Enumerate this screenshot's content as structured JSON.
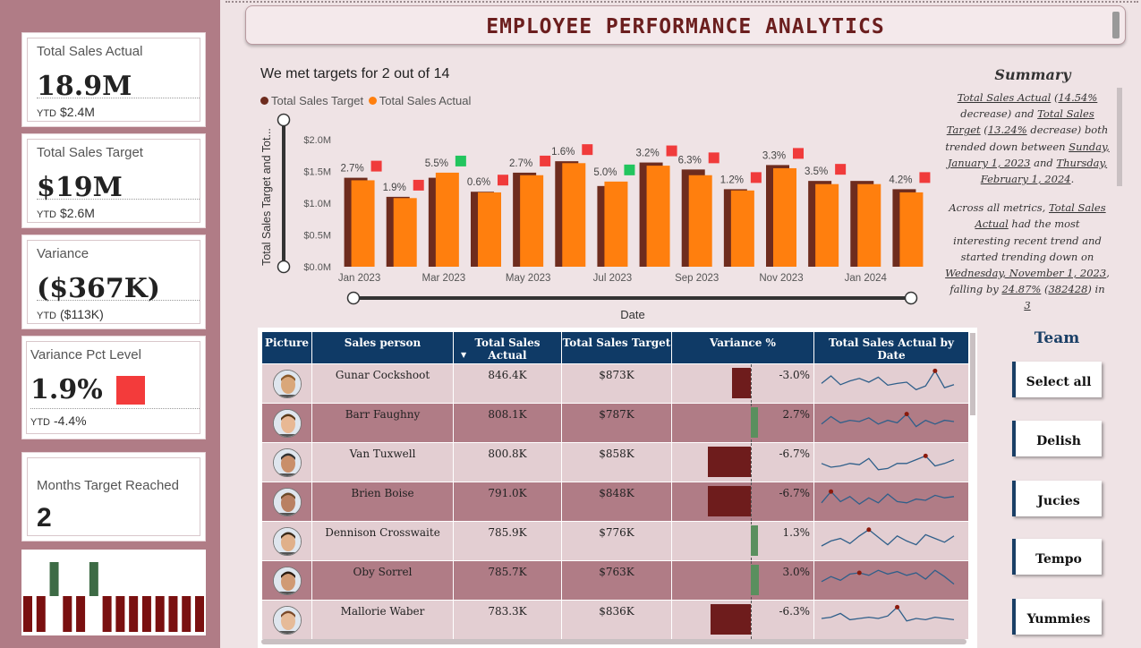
{
  "title": "EMPLOYEE PERFORMANCE ANALYTICS",
  "kpis": {
    "total_sales_actual": {
      "label": "Total Sales Actual",
      "value": "18.9M",
      "ytd_label": "YTD",
      "ytd_value": "$2.4M"
    },
    "total_sales_target": {
      "label": "Total Sales Target",
      "value": "$19M",
      "ytd_label": "YTD",
      "ytd_value": "$2.6M"
    },
    "variance": {
      "label": "Variance",
      "value": "($367K)",
      "ytd_label": "YTD",
      "ytd_value": "($113K)"
    },
    "variance_pct": {
      "label": "Variance Pct Level",
      "value": "1.9%",
      "ytd_label": "YTD",
      "ytd_value": "-4.4%",
      "status_color": "#f33b3b"
    },
    "months_target": {
      "label": "Months Target Reached",
      "value": "2"
    }
  },
  "mini_chart": {
    "values": [
      0,
      0,
      1,
      0,
      0,
      1,
      0,
      0,
      0,
      0,
      0,
      0,
      0,
      0
    ],
    "met_color": "#3d6b45",
    "missed_color": "#7a1010"
  },
  "chart_data": {
    "type": "bar",
    "title": "We met targets for 2 out of 14",
    "xlabel": "Date",
    "ylabel": "Total Sales Target and Tot...",
    "ylim": [
      0,
      2000000
    ],
    "yticks": [
      "$0.0M",
      "$0.5M",
      "$1.0M",
      "$1.5M",
      "$2.0M"
    ],
    "xtick_labels": [
      "Jan 2023",
      "Mar 2023",
      "May 2023",
      "Jul 2023",
      "Sep 2023",
      "Nov 2023",
      "Jan 2024"
    ],
    "categories": [
      "Jan 2023",
      "Feb 2023",
      "Mar 2023",
      "Apr 2023",
      "May 2023",
      "Jun 2023",
      "Jul 2023",
      "Aug 2023",
      "Sep 2023",
      "Oct 2023",
      "Nov 2023",
      "Dec 2023",
      "Jan 2024",
      "Feb 2024"
    ],
    "series": [
      {
        "name": "Total Sales Target",
        "color": "#6e2c1e",
        "values": [
          1400000,
          1100000,
          1400000,
          1180000,
          1480000,
          1660000,
          1270000,
          1640000,
          1530000,
          1220000,
          1600000,
          1350000,
          1350000,
          1220000
        ]
      },
      {
        "name": "Total Sales Actual",
        "color": "#ff7f0e",
        "values": [
          1360000,
          1080000,
          1480000,
          1170000,
          1440000,
          1630000,
          1340000,
          1590000,
          1440000,
          1200000,
          1550000,
          1300000,
          1300000,
          1170000
        ]
      }
    ],
    "labels": [
      "2.7%",
      "1.9%",
      "5.5%",
      "0.6%",
      "2.7%",
      "1.6%",
      "5.0%",
      "3.2%",
      "6.3%",
      "1.2%",
      "3.3%",
      "3.5%",
      "",
      "4.2%"
    ],
    "status": [
      "miss",
      "miss",
      "met",
      "miss",
      "miss",
      "miss",
      "met",
      "miss",
      "miss",
      "miss",
      "miss",
      "miss",
      "none",
      "miss"
    ],
    "met_color": "#22c55e",
    "miss_color": "#f03b3b"
  },
  "summary": {
    "title": "Summary",
    "p1": [
      {
        "t": "Total Sales Actual",
        "u": true
      },
      {
        "t": " (",
        "u": false
      },
      {
        "t": "14.54%",
        "u": true
      },
      {
        "t": " decrease) and ",
        "u": false
      },
      {
        "t": "Total Sales Target",
        "u": true
      },
      {
        "t": " (",
        "u": false
      },
      {
        "t": "13.24%",
        "u": true
      },
      {
        "t": " decrease) both trended down between ",
        "u": false
      },
      {
        "t": "Sunday, January 1, 2023",
        "u": true
      },
      {
        "t": " and ",
        "u": false
      },
      {
        "t": "Thursday, February 1, 2024",
        "u": true
      },
      {
        "t": ".",
        "u": false
      }
    ],
    "p2": [
      {
        "t": "Across all metrics, ",
        "u": false
      },
      {
        "t": "Total Sales Actual",
        "u": true
      },
      {
        "t": " had the most interesting recent trend and started trending down on ",
        "u": false
      },
      {
        "t": "Wednesday, November 1, 2023",
        "u": true
      },
      {
        "t": ", falling by ",
        "u": false
      },
      {
        "t": "24.87%",
        "u": true
      },
      {
        "t": " (",
        "u": false
      },
      {
        "t": "382428",
        "u": true
      },
      {
        "t": ") in ",
        "u": false
      },
      {
        "t": "3",
        "u": true
      }
    ]
  },
  "table": {
    "columns": [
      "Picture",
      "Sales person",
      "Total Sales Actual",
      "Total Sales Target",
      "Variance %",
      "Total Sales Actual by Date"
    ],
    "rows": [
      {
        "name": "Gunar Cockshoot",
        "actual": "846.4K",
        "target": "$873K",
        "variance": "-3.0%",
        "variance_value": -3.0,
        "spark": [
          0.55,
          0.25,
          0.6,
          0.45,
          0.35,
          0.5,
          0.3,
          0.62,
          0.55,
          0.5,
          0.8,
          0.65,
          0.05,
          0.72,
          0.6
        ],
        "spark_peak": 12
      },
      {
        "name": "Barr Faughny",
        "actual": "808.1K",
        "target": "$787K",
        "variance": "2.7%",
        "variance_value": 2.7,
        "spark": [
          0.6,
          0.3,
          0.55,
          0.45,
          0.5,
          0.35,
          0.6,
          0.45,
          0.55,
          0.2,
          0.7,
          0.45,
          0.6,
          0.45,
          0.5
        ],
        "spark_peak": 9
      },
      {
        "name": "Van Tuxwell",
        "actual": "800.8K",
        "target": "$858K",
        "variance": "-6.7%",
        "variance_value": -6.7,
        "spark": [
          0.6,
          0.75,
          0.7,
          0.6,
          0.65,
          0.4,
          0.85,
          0.8,
          0.6,
          0.6,
          0.45,
          0.3,
          0.7,
          0.6,
          0.45
        ],
        "spark_peak": 11
      },
      {
        "name": "Brien Boise",
        "actual": "791.0K",
        "target": "$848K",
        "variance": "-6.7%",
        "variance_value": -6.7,
        "spark": [
          0.6,
          0.15,
          0.55,
          0.35,
          0.65,
          0.4,
          0.6,
          0.25,
          0.55,
          0.6,
          0.45,
          0.5,
          0.3,
          0.4,
          0.35
        ],
        "spark_peak": 1
      },
      {
        "name": "Dennison Crosswaite",
        "actual": "785.9K",
        "target": "$776K",
        "variance": "1.3%",
        "variance_value": 1.3,
        "spark": [
          0.75,
          0.55,
          0.45,
          0.65,
          0.35,
          0.1,
          0.4,
          0.7,
          0.35,
          0.55,
          0.7,
          0.3,
          0.45,
          0.6,
          0.35
        ],
        "spark_peak": 5
      },
      {
        "name": "Oby Sorrel",
        "actual": "785.7K",
        "target": "$763K",
        "variance": "3.0%",
        "variance_value": 3.0,
        "spark": [
          0.6,
          0.4,
          0.55,
          0.3,
          0.25,
          0.35,
          0.15,
          0.3,
          0.2,
          0.35,
          0.25,
          0.5,
          0.15,
          0.4,
          0.7
        ],
        "spark_peak": 4
      },
      {
        "name": "Mallorie Waber",
        "actual": "783.3K",
        "target": "$836K",
        "variance": "-6.3%",
        "variance_value": -6.3,
        "spark": [
          0.5,
          0.45,
          0.3,
          0.55,
          0.5,
          0.45,
          0.5,
          0.4,
          0.05,
          0.6,
          0.5,
          0.55,
          0.45,
          0.5,
          0.55
        ],
        "spark_peak": 8
      }
    ]
  },
  "team": {
    "title": "Team",
    "buttons": [
      "Select all",
      "Delish",
      "Jucies",
      "Tempo",
      "Yummies"
    ]
  },
  "colors": {
    "sidebar": "#b07c86",
    "header": "#0f3a66",
    "negative": "#6e1c1c",
    "positive": "#5a8f5e"
  }
}
